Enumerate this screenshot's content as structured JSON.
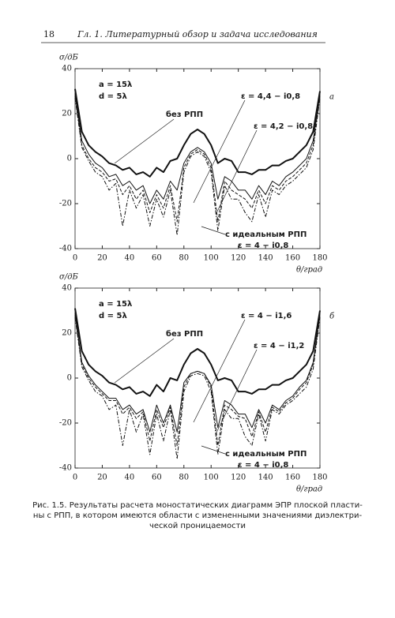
{
  "header": {
    "page_number": "18",
    "running_title": "Гл. 1. Литературный обзор и задача исследования"
  },
  "chart_data": [
    {
      "type": "line",
      "panel_label": "а",
      "x_label": "θ/град",
      "y_label": "σ/дБ",
      "annotations": [
        "a = 15λ",
        "d = 5λ",
        "без РПП",
        "ε = 4,4 − i0,8",
        "ε = 4,2 − i0,8",
        "с идеальным РПП",
        "ε = 4 − i0,8"
      ],
      "xlim": [
        0,
        180
      ],
      "xticks": [
        0,
        20,
        40,
        60,
        80,
        100,
        120,
        140,
        160,
        180
      ],
      "ylim": [
        -40,
        40
      ],
      "yticks": [
        -40,
        -20,
        0,
        20,
        40
      ],
      "x": [
        0,
        5,
        10,
        15,
        20,
        25,
        30,
        35,
        40,
        45,
        50,
        55,
        60,
        65,
        70,
        75,
        80,
        85,
        90,
        95,
        100,
        105,
        110,
        115,
        120,
        125,
        130,
        135,
        140,
        145,
        150,
        155,
        160,
        165,
        170,
        175,
        180
      ],
      "series": [
        {
          "color": "#111111",
          "line_style": "solid",
          "line_width": 2,
          "values": [
            31,
            12,
            6,
            3,
            1,
            -2,
            -3,
            -5,
            -4,
            -7,
            -6,
            -8,
            -4,
            -6,
            -1,
            0,
            6,
            11,
            13,
            11,
            6,
            -2,
            0,
            -1,
            -6,
            -6,
            -7,
            -5,
            -5,
            -3,
            -3,
            -1,
            0,
            3,
            6,
            12,
            30
          ]
        },
        {
          "color": "#111111",
          "line_style": "solid",
          "line_width": 1,
          "values": [
            29,
            8,
            2,
            -2,
            -4,
            -8,
            -7,
            -12,
            -10,
            -14,
            -12,
            -20,
            -14,
            -18,
            -10,
            -14,
            -2,
            3,
            5,
            3,
            -2,
            -18,
            -8,
            -10,
            -14,
            -14,
            -18,
            -12,
            -16,
            -10,
            -12,
            -8,
            -6,
            -3,
            0,
            8,
            29
          ]
        },
        {
          "color": "#111111",
          "line_style": "dashed",
          "line_width": 1,
          "values": [
            28,
            6,
            0,
            -4,
            -6,
            -10,
            -9,
            -16,
            -12,
            -18,
            -14,
            -24,
            -16,
            -22,
            -12,
            -28,
            -4,
            2,
            4,
            2,
            -4,
            -28,
            -10,
            -14,
            -16,
            -18,
            -22,
            -14,
            -20,
            -12,
            -14,
            -10,
            -8,
            -5,
            -2,
            6,
            28
          ]
        },
        {
          "color": "#111111",
          "line_style": "dashdot",
          "line_width": 1,
          "values": [
            27,
            5,
            -1,
            -6,
            -8,
            -14,
            -11,
            -30,
            -14,
            -22,
            -16,
            -30,
            -18,
            -26,
            -14,
            -34,
            -6,
            1,
            3,
            1,
            -6,
            -32,
            -12,
            -18,
            -18,
            -24,
            -28,
            -16,
            -26,
            -14,
            -16,
            -12,
            -10,
            -7,
            -4,
            4,
            27
          ]
        }
      ]
    },
    {
      "type": "line",
      "panel_label": "б",
      "x_label": "θ/град",
      "y_label": "σ/дБ",
      "annotations": [
        "a = 15λ",
        "d = 5λ",
        "без РПП",
        "ε = 4 − i1,6",
        "ε = 4 − i1,2",
        "с идеальным РПП",
        "ε = 4 − i0,8"
      ],
      "xlim": [
        0,
        180
      ],
      "xticks": [
        0,
        20,
        40,
        60,
        80,
        100,
        120,
        140,
        160,
        180
      ],
      "ylim": [
        -40,
        40
      ],
      "yticks": [
        -40,
        -20,
        0,
        20,
        40
      ],
      "x": [
        0,
        5,
        10,
        15,
        20,
        25,
        30,
        35,
        40,
        45,
        50,
        55,
        60,
        65,
        70,
        75,
        80,
        85,
        90,
        95,
        100,
        105,
        110,
        115,
        120,
        125,
        130,
        135,
        140,
        145,
        150,
        155,
        160,
        165,
        170,
        175,
        180
      ],
      "series": [
        {
          "color": "#111111",
          "line_style": "solid",
          "line_width": 2,
          "values": [
            31,
            12,
            6,
            3,
            1,
            -2,
            -3,
            -5,
            -4,
            -7,
            -6,
            -8,
            -3,
            -6,
            0,
            -1,
            6,
            11,
            13,
            11,
            6,
            -1,
            0,
            -1,
            -6,
            -6,
            -7,
            -5,
            -5,
            -3,
            -3,
            -1,
            0,
            3,
            6,
            12,
            30
          ]
        },
        {
          "color": "#111111",
          "line_style": "solid",
          "line_width": 1,
          "values": [
            29,
            7,
            1,
            -3,
            -6,
            -9,
            -9,
            -14,
            -12,
            -16,
            -14,
            -24,
            -12,
            -20,
            -12,
            -24,
            -2,
            2,
            3,
            2,
            -3,
            -22,
            -10,
            -12,
            -16,
            -16,
            -22,
            -14,
            -20,
            -12,
            -14,
            -10,
            -8,
            -4,
            -1,
            7,
            29
          ]
        },
        {
          "color": "#111111",
          "line_style": "dashed",
          "line_width": 1,
          "values": [
            28,
            6,
            0,
            -4,
            -7,
            -10,
            -10,
            -16,
            -13,
            -18,
            -15,
            -28,
            -14,
            -22,
            -13,
            -30,
            -4,
            2,
            3,
            2,
            -4,
            -30,
            -12,
            -14,
            -17,
            -18,
            -26,
            -15,
            -24,
            -13,
            -15,
            -11,
            -9,
            -5,
            -2,
            6,
            28
          ]
        },
        {
          "color": "#111111",
          "line_style": "dashdot",
          "line_width": 1,
          "values": [
            27,
            5,
            -1,
            -6,
            -8,
            -14,
            -12,
            -30,
            -14,
            -24,
            -16,
            -34,
            -16,
            -28,
            -14,
            -36,
            -6,
            1,
            2,
            1,
            -6,
            -34,
            -14,
            -18,
            -18,
            -26,
            -30,
            -16,
            -28,
            -14,
            -16,
            -12,
            -10,
            -7,
            -4,
            4,
            27
          ]
        }
      ]
    }
  ],
  "caption": [
    "Рис. 1.5. Результаты расчета моностатических диаграмм ЭПР плоской пласти-",
    "ны с РПП, в котором имеются области с измененными значениями диэлектри-",
    "ческой проницаемости"
  ]
}
